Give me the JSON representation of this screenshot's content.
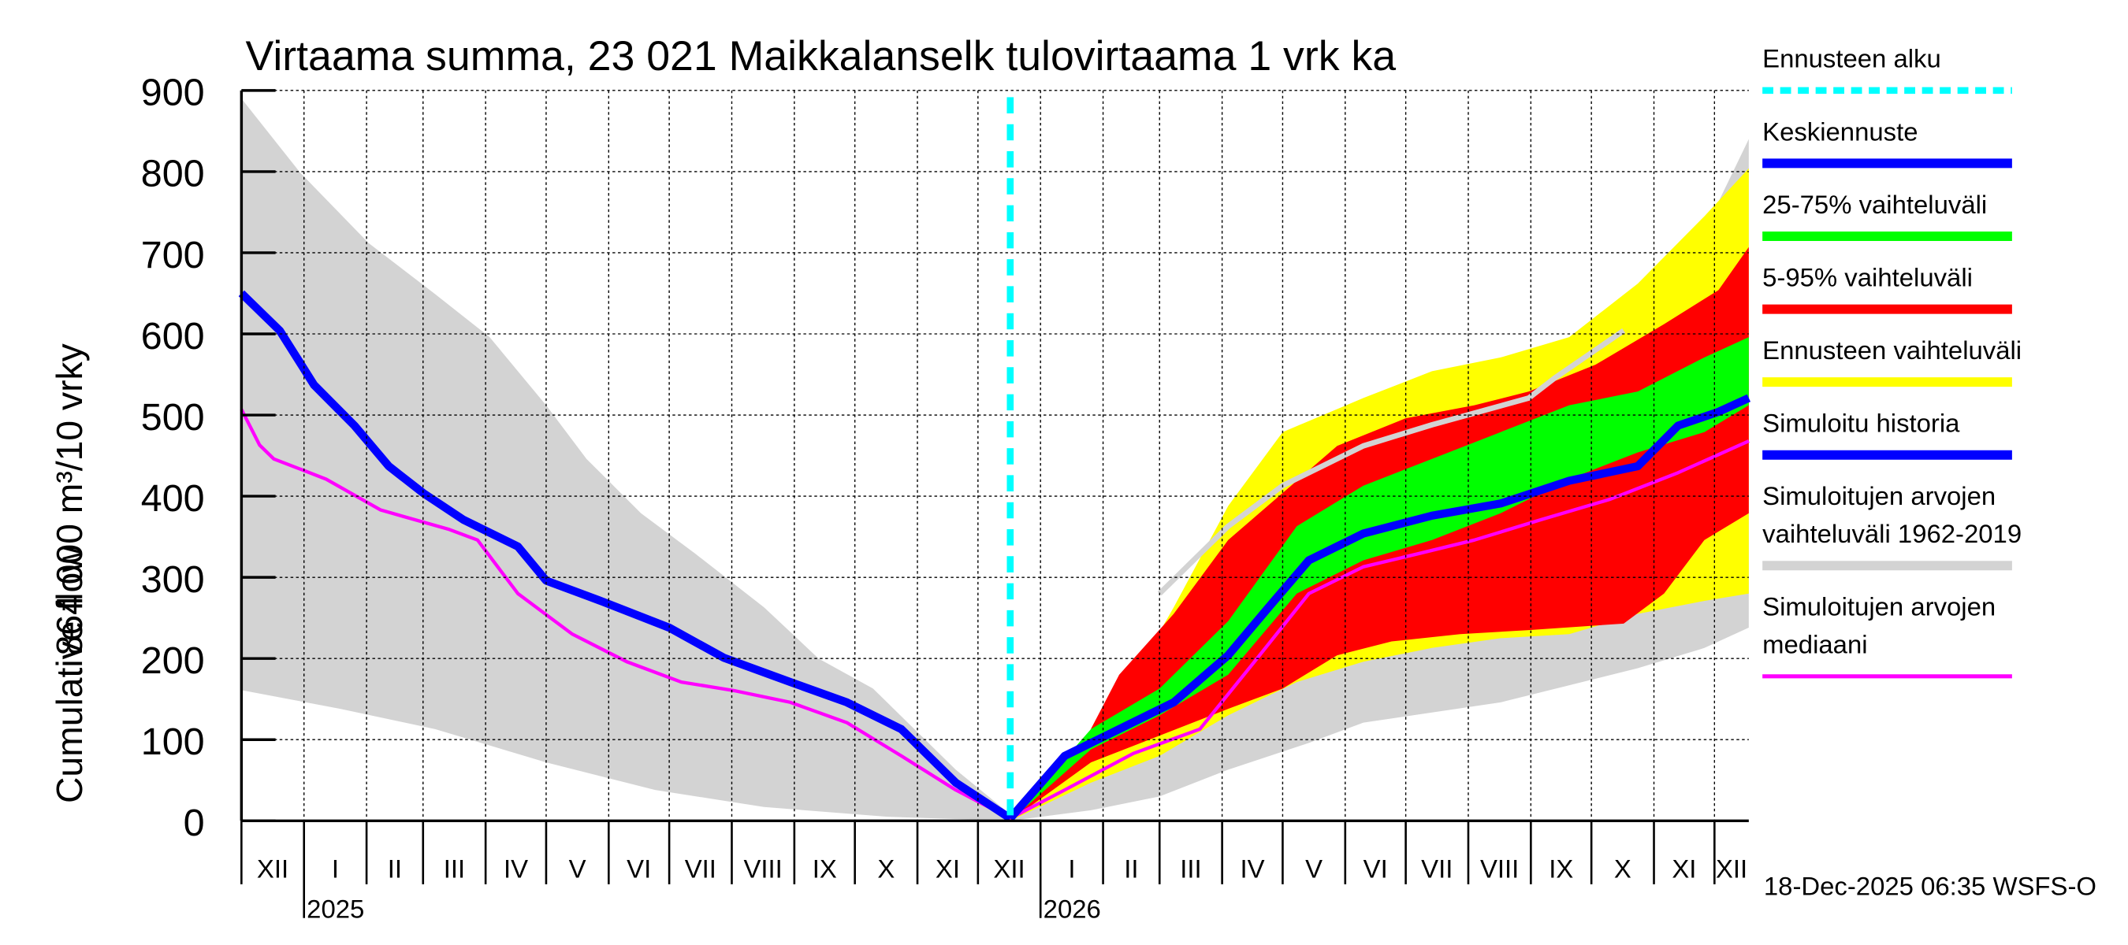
{
  "chart_data": {
    "type": "area",
    "title": "Virtaama summa, 23 021 Maikkalanselk tulovirtaama 1 vrk ka",
    "ylabel_line1": "Cumulative flow",
    "ylabel_line2": "864 000 m³/10 vrky",
    "ylim": [
      0,
      900
    ],
    "xlim_days": [
      0,
      747
    ],
    "x_unit": "days since 2024-12-01",
    "yticks": [
      0,
      100,
      200,
      300,
      400,
      500,
      600,
      700,
      800,
      900
    ],
    "months": [
      {
        "label": "XII",
        "day": 0
      },
      {
        "label": "I",
        "day": 31
      },
      {
        "label": "II",
        "day": 62
      },
      {
        "label": "III",
        "day": 90
      },
      {
        "label": "IV",
        "day": 121
      },
      {
        "label": "V",
        "day": 151
      },
      {
        "label": "VI",
        "day": 182
      },
      {
        "label": "VII",
        "day": 212
      },
      {
        "label": "VIII",
        "day": 243
      },
      {
        "label": "IX",
        "day": 274
      },
      {
        "label": "X",
        "day": 304
      },
      {
        "label": "XI",
        "day": 335
      },
      {
        "label": "XII",
        "day": 365
      },
      {
        "label": "I",
        "day": 396
      },
      {
        "label": "II",
        "day": 427
      },
      {
        "label": "III",
        "day": 455
      },
      {
        "label": "IV",
        "day": 486
      },
      {
        "label": "V",
        "day": 516
      },
      {
        "label": "VI",
        "day": 547
      },
      {
        "label": "VII",
        "day": 577
      },
      {
        "label": "VIII",
        "day": 608
      },
      {
        "label": "IX",
        "day": 639
      },
      {
        "label": "X",
        "day": 669
      },
      {
        "label": "XI",
        "day": 700
      },
      {
        "label": "XII",
        "day": 730
      }
    ],
    "years": [
      {
        "label": "2025",
        "day": 31
      },
      {
        "label": "2026",
        "day": 396
      }
    ],
    "forecast_start_day": 381,
    "timestamp": "18-Dec-2025 06:35 WSFS-O",
    "legend": [
      {
        "label": "Ennusteen alku",
        "color": "#00ffff",
        "style": "dashed"
      },
      {
        "label": "Keskiennuste",
        "color": "#0000ff"
      },
      {
        "label": "25-75% vaihteluväli",
        "color": "#00ff00"
      },
      {
        "label": "5-95% vaihteluväli",
        "color": "#ff0000"
      },
      {
        "label": "Ennusteen vaihteluväli",
        "color": "#ffff00"
      },
      {
        "label": "Simuloitu historia",
        "color": "#0000ff"
      },
      {
        "label": "Simuloitujen arvojen",
        "label2": "vaihteluväli 1962-2019",
        "color": "#d3d3d3"
      },
      {
        "label": "Simuloitujen arvojen",
        "label2": "mediaani",
        "color": "#ff00ff"
      }
    ],
    "bands": [
      {
        "name": "sim-range-band",
        "color": "#d3d3d3",
        "upper": [
          [
            0,
            890
          ],
          [
            29,
            799
          ],
          [
            63,
            712
          ],
          [
            96,
            649
          ],
          [
            123,
            596
          ],
          [
            151,
            512
          ],
          [
            171,
            446
          ],
          [
            198,
            379
          ],
          [
            225,
            329
          ],
          [
            259,
            263
          ],
          [
            286,
            200
          ],
          [
            313,
            163
          ],
          [
            354,
            63
          ],
          [
            381,
            8
          ],
          [
            394,
            30
          ],
          [
            421,
            113
          ],
          [
            455,
            196
          ],
          [
            489,
            280
          ],
          [
            523,
            354
          ],
          [
            556,
            421
          ],
          [
            590,
            462
          ],
          [
            624,
            496
          ],
          [
            658,
            529
          ],
          [
            692,
            587
          ],
          [
            719,
            696
          ],
          [
            747,
            840
          ]
        ],
        "lower": [
          [
            0,
            161
          ],
          [
            49,
            138
          ],
          [
            96,
            113
          ],
          [
            151,
            72
          ],
          [
            205,
            38
          ],
          [
            259,
            17
          ],
          [
            320,
            5
          ],
          [
            381,
            0
          ],
          [
            421,
            13
          ],
          [
            455,
            30
          ],
          [
            489,
            63
          ],
          [
            529,
            96
          ],
          [
            556,
            121
          ],
          [
            624,
            146
          ],
          [
            692,
            188
          ],
          [
            725,
            213
          ],
          [
            747,
            238
          ]
        ]
      },
      {
        "name": "forecast-range-band",
        "color": "#ffff00",
        "upper": [
          [
            381,
            0
          ],
          [
            408,
            72
          ],
          [
            435,
            146
          ],
          [
            462,
            263
          ],
          [
            489,
            388
          ],
          [
            516,
            479
          ],
          [
            556,
            521
          ],
          [
            590,
            554
          ],
          [
            624,
            571
          ],
          [
            658,
            596
          ],
          [
            692,
            662
          ],
          [
            725,
            745
          ],
          [
            747,
            804
          ]
        ],
        "lower": [
          [
            381,
            0
          ],
          [
            421,
            47
          ],
          [
            455,
            80
          ],
          [
            489,
            130
          ],
          [
            523,
            171
          ],
          [
            556,
            196
          ],
          [
            590,
            213
          ],
          [
            624,
            225
          ],
          [
            658,
            230
          ],
          [
            692,
            255
          ],
          [
            725,
            271
          ],
          [
            747,
            280
          ]
        ]
      },
      {
        "name": "p5-95-band",
        "color": "#ff0000",
        "upper": [
          [
            381,
            0
          ],
          [
            414,
            80
          ],
          [
            435,
            180
          ],
          [
            462,
            255
          ],
          [
            489,
            346
          ],
          [
            516,
            404
          ],
          [
            543,
            462
          ],
          [
            577,
            496
          ],
          [
            611,
            512
          ],
          [
            638,
            529
          ],
          [
            671,
            562
          ],
          [
            705,
            612
          ],
          [
            732,
            654
          ],
          [
            747,
            707
          ]
        ],
        "lower": [
          [
            381,
            0
          ],
          [
            421,
            72
          ],
          [
            455,
            105
          ],
          [
            489,
            138
          ],
          [
            516,
            163
          ],
          [
            543,
            204
          ],
          [
            570,
            221
          ],
          [
            604,
            230
          ],
          [
            638,
            235
          ],
          [
            685,
            243
          ],
          [
            705,
            280
          ],
          [
            725,
            346
          ],
          [
            747,
            379
          ]
        ]
      },
      {
        "name": "p25-75-band",
        "color": "#00ff00",
        "upper": [
          [
            381,
            0
          ],
          [
            421,
            113
          ],
          [
            455,
            163
          ],
          [
            489,
            246
          ],
          [
            523,
            363
          ],
          [
            556,
            413
          ],
          [
            590,
            446
          ],
          [
            624,
            479
          ],
          [
            658,
            512
          ],
          [
            692,
            529
          ],
          [
            725,
            571
          ],
          [
            747,
            596
          ]
        ],
        "lower": [
          [
            381,
            0
          ],
          [
            421,
            88
          ],
          [
            455,
            130
          ],
          [
            489,
            180
          ],
          [
            523,
            280
          ],
          [
            556,
            321
          ],
          [
            590,
            346
          ],
          [
            624,
            379
          ],
          [
            658,
            421
          ],
          [
            692,
            454
          ],
          [
            725,
            479
          ],
          [
            747,
            512
          ]
        ]
      }
    ],
    "lines": [
      {
        "name": "sim-grey-line",
        "color": "#d3d3d3",
        "width": 4,
        "points": [
          [
            455,
            280
          ],
          [
            489,
            363
          ],
          [
            516,
            413
          ],
          [
            556,
            462
          ],
          [
            590,
            488
          ],
          [
            638,
            521
          ],
          [
            651,
            546
          ],
          [
            685,
            604
          ]
        ]
      },
      {
        "name": "median-line",
        "color": "#ff00ff",
        "width": 2.5,
        "points": [
          [
            0,
            507
          ],
          [
            9,
            463
          ],
          [
            16,
            446
          ],
          [
            42,
            421
          ],
          [
            69,
            383
          ],
          [
            103,
            359
          ],
          [
            117,
            346
          ],
          [
            137,
            280
          ],
          [
            164,
            230
          ],
          [
            191,
            196
          ],
          [
            218,
            171
          ],
          [
            245,
            160
          ],
          [
            272,
            146
          ],
          [
            300,
            121
          ],
          [
            327,
            80
          ],
          [
            354,
            38
          ],
          [
            381,
            3
          ],
          [
            408,
            38
          ],
          [
            442,
            83
          ],
          [
            475,
            113
          ],
          [
            502,
            196
          ],
          [
            529,
            280
          ],
          [
            556,
            313
          ],
          [
            583,
            329
          ],
          [
            611,
            346
          ],
          [
            644,
            371
          ],
          [
            678,
            396
          ],
          [
            712,
            429
          ],
          [
            747,
            468
          ]
        ]
      },
      {
        "name": "history-line",
        "color": "#0000ff",
        "width": 6,
        "points": [
          [
            0,
            650
          ],
          [
            19,
            604
          ],
          [
            36,
            537
          ],
          [
            56,
            487
          ],
          [
            73,
            437
          ],
          [
            90,
            404
          ],
          [
            110,
            371
          ],
          [
            137,
            338
          ],
          [
            151,
            296
          ],
          [
            178,
            271
          ],
          [
            212,
            238
          ],
          [
            239,
            201
          ],
          [
            272,
            171
          ],
          [
            300,
            146
          ],
          [
            327,
            113
          ],
          [
            354,
            47
          ],
          [
            381,
            3
          ]
        ]
      },
      {
        "name": "mean-forecast-line",
        "color": "#0000ff",
        "width": 6,
        "points": [
          [
            381,
            3
          ],
          [
            408,
            80
          ],
          [
            435,
            113
          ],
          [
            462,
            146
          ],
          [
            489,
            204
          ],
          [
            509,
            263
          ],
          [
            529,
            321
          ],
          [
            556,
            354
          ],
          [
            590,
            376
          ],
          [
            624,
            391
          ],
          [
            658,
            419
          ],
          [
            692,
            437
          ],
          [
            712,
            487
          ],
          [
            732,
            504
          ],
          [
            747,
            521
          ]
        ]
      }
    ]
  }
}
